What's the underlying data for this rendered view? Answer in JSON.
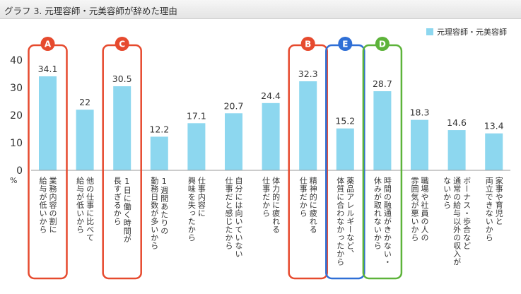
{
  "title": "グラフ 3. 元理容師・元美容師が辞めた理由",
  "chart_data": {
    "type": "bar",
    "ylim": [
      0,
      40
    ],
    "yticks": [
      0,
      10,
      20,
      30,
      40
    ],
    "ylabel": "%",
    "grid": false,
    "legend_position": "top-right",
    "series": [
      {
        "name": "元理容師・元美容師",
        "color": "#8dd7ef",
        "values": [
          34.1,
          22,
          30.5,
          12.2,
          17.1,
          20.7,
          24.4,
          32.3,
          15.2,
          28.7,
          18.3,
          14.6,
          13.4
        ]
      }
    ],
    "categories": [
      "業務内容の割に給与が低いから",
      "他の仕事に比べて給与が低いから",
      "1日に働く時間が長すぎるから",
      "1週間あたりの勤務日数が多いから",
      "仕事内容に興味を失ったから",
      "自分には向いていない仕事だと感じたから",
      "体力的に疲れる仕事だから",
      "精神的に疲れる仕事だから",
      "薬品アレルギーなど、体質に合わなかったから",
      "時間の融通がきかない・休みが取れないから",
      "職場や社員の人の雰囲気が悪いから",
      "ボーナス・歩合など通常の給与以外の収入がないから",
      "家事や育児と両立できないから"
    ],
    "category_lines": [
      [
        "業務内容の割に",
        "給与が低いから"
      ],
      [
        "他の仕事に比べて",
        "給与が低いから"
      ],
      [
        "1日に働く時間が",
        "長すぎるから"
      ],
      [
        "1週間あたりの",
        "勤務日数が多いから"
      ],
      [
        "仕事内容に",
        "興味を失ったから"
      ],
      [
        "自分には向いていない",
        "仕事だと感じたから"
      ],
      [
        "体力的に疲れる",
        "仕事だから"
      ],
      [
        "精神的に疲れる",
        "仕事だから"
      ],
      [
        "薬品アレルギーなど、",
        "体質に合わなかったから"
      ],
      [
        "時間の融通がきかない・",
        "休みが取れないから"
      ],
      [
        "職場や社員の人の",
        "雰囲気が悪いから"
      ],
      [
        "ボーナス・歩合など",
        "通常の給与以外の収入が",
        "ないから"
      ],
      [
        "家事や育児と",
        "両立できないから"
      ]
    ],
    "highlights": [
      {
        "label": "A",
        "index": 0,
        "color": "#e64a2e"
      },
      {
        "label": "C",
        "index": 2,
        "color": "#e64a2e"
      },
      {
        "label": "B",
        "index": 7,
        "color": "#e64a2e"
      },
      {
        "label": "E",
        "index": 8,
        "color": "#2f6fd6"
      },
      {
        "label": "D",
        "index": 9,
        "color": "#5db33a"
      }
    ]
  }
}
